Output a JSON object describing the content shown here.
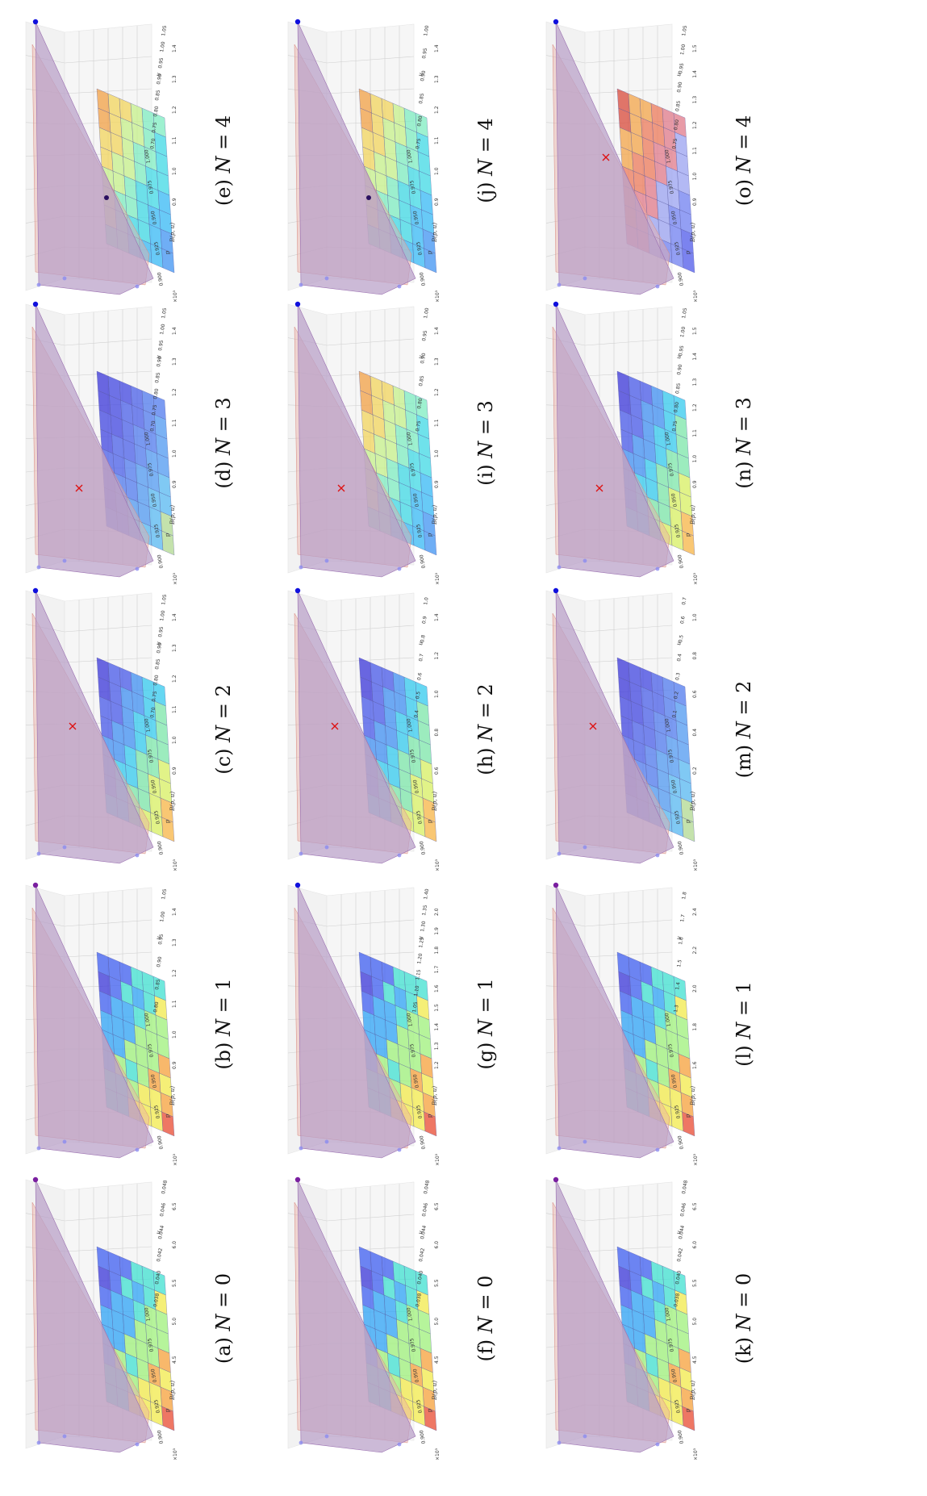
{
  "figure": {
    "rows": [
      {
        "panels": [
          {
            "label": "(a)",
            "n": "0",
            "surface": "rainbow",
            "marker": "purple-dot",
            "z_ticks": [
              "6.5",
              "6.0",
              "5.5",
              "5.0",
              "4.5"
            ],
            "right_ticks": [
              "0.048",
              "0.046",
              "0.044",
              "0.042",
              "0.040",
              "0.038"
            ],
            "bottom_ticks": [
              "0.900",
              "0.925",
              "0.950",
              "0.975",
              "1.000"
            ]
          },
          {
            "label": "(b)",
            "n": "1",
            "surface": "rainbow",
            "marker": "purple-dot",
            "z_ticks": [
              "1.4",
              "1.3",
              "1.2",
              "1.1",
              "1.0",
              "0.9"
            ],
            "right_ticks": [
              "1.05",
              "1.00",
              "0.95",
              "0.90",
              "0.85",
              "0.80"
            ],
            "bottom_ticks": [
              "0.900",
              "0.925",
              "0.950",
              "0.975",
              "1.000"
            ]
          },
          {
            "label": "(c)",
            "n": "2",
            "surface": "wide",
            "marker": "red-x",
            "z_ticks": [
              "1.4",
              "1.3",
              "1.2",
              "1.1",
              "1.0",
              "0.9"
            ],
            "right_ticks": [
              "1.05",
              "1.00",
              "0.95",
              "0.90",
              "0.85",
              "0.80",
              "0.75",
              "0.70"
            ],
            "bottom_ticks": [
              "0.900",
              "0.925",
              "0.950",
              "0.975",
              "1.000"
            ]
          },
          {
            "label": "(d)",
            "n": "3",
            "surface": "blue",
            "marker": "red-x",
            "z_ticks": [
              "1.4",
              "1.3",
              "1.2",
              "1.1",
              "1.0",
              "0.9"
            ],
            "right_ticks": [
              "1.05",
              "1.00",
              "0.95",
              "0.90",
              "0.85",
              "0.80",
              "0.75",
              "0.70"
            ],
            "bottom_ticks": [
              "0.900",
              "0.925",
              "0.950",
              "0.975",
              "1.000"
            ]
          },
          {
            "label": "(e)",
            "n": "4",
            "surface": "cyan",
            "marker": "dark-dot",
            "z_ticks": [
              "1.4",
              "1.3",
              "1.2",
              "1.1",
              "1.0",
              "0.9"
            ],
            "right_ticks": [
              "1.05",
              "1.00",
              "0.95",
              "0.90",
              "0.85",
              "0.80",
              "0.75",
              "0.70"
            ],
            "bottom_ticks": [
              "0.900",
              "0.925",
              "0.950",
              "0.975",
              "1.000"
            ]
          }
        ]
      },
      {
        "panels": [
          {
            "label": "(f)",
            "n": "0",
            "surface": "rainbow",
            "marker": "purple-dot",
            "z_ticks": [
              "6.5",
              "6.0",
              "5.5",
              "5.0",
              "4.5"
            ],
            "right_ticks": [
              "0.048",
              "0.046",
              "0.044",
              "0.042",
              "0.040",
              "0.038"
            ],
            "bottom_ticks": [
              "0.900",
              "0.925",
              "0.950",
              "0.975",
              "1.000"
            ]
          },
          {
            "label": "(g)",
            "n": "1",
            "surface": "rainbow",
            "marker": "blue-dot",
            "z_ticks": [
              "2.0",
              "1.9",
              "1.8",
              "1.7",
              "1.6",
              "1.5",
              "1.4",
              "1.3",
              "1.2"
            ],
            "right_ticks": [
              "1.40",
              "1.35",
              "1.30",
              "1.25",
              "1.20",
              "1.15",
              "1.10",
              "1.05"
            ],
            "bottom_ticks": [
              "0.900",
              "0.925",
              "0.950",
              "0.975",
              "1.000"
            ]
          },
          {
            "label": "(h)",
            "n": "2",
            "surface": "wide",
            "marker": "red-x",
            "z_ticks": [
              "1.4",
              "1.2",
              "1.0",
              "0.8",
              "0.6"
            ],
            "right_ticks": [
              "1.0",
              "0.9",
              "0.8",
              "0.7",
              "0.6",
              "0.5",
              "0.4"
            ],
            "bottom_ticks": [
              "0.900",
              "0.925",
              "0.950",
              "0.975",
              "1.000"
            ]
          },
          {
            "label": "(i)",
            "n": "3",
            "surface": "cyan",
            "marker": "red-x",
            "z_ticks": [
              "1.4",
              "1.3",
              "1.2",
              "1.1",
              "1.0",
              "0.9"
            ],
            "right_ticks": [
              "1.00",
              "0.95",
              "0.90",
              "0.85",
              "0.80",
              "0.75"
            ],
            "bottom_ticks": [
              "0.900",
              "0.925",
              "0.950",
              "0.975",
              "1.000"
            ]
          },
          {
            "label": "(j)",
            "n": "4",
            "surface": "cyan",
            "marker": "dark-dot",
            "z_ticks": [
              "1.4",
              "1.3",
              "1.2",
              "1.1",
              "1.0",
              "0.9"
            ],
            "right_ticks": [
              "1.00",
              "0.95",
              "0.90",
              "0.85",
              "0.80",
              "0.75"
            ],
            "bottom_ticks": [
              "0.900",
              "0.925",
              "0.950",
              "0.975",
              "1.000"
            ]
          }
        ]
      },
      {
        "panels": [
          {
            "label": "(k)",
            "n": "0",
            "surface": "rainbow",
            "marker": "purple-dot",
            "z_ticks": [
              "6.5",
              "6.0",
              "5.5",
              "5.0",
              "4.5"
            ],
            "right_ticks": [
              "0.048",
              "0.046",
              "0.044",
              "0.042",
              "0.040",
              "0.038"
            ],
            "bottom_ticks": [
              "0.900",
              "0.925",
              "0.950",
              "0.975",
              "1.000"
            ]
          },
          {
            "label": "(l)",
            "n": "1",
            "surface": "rainbow",
            "marker": "purple-dot",
            "z_ticks": [
              "2.4",
              "2.2",
              "2.0",
              "1.8",
              "1.6"
            ],
            "right_ticks": [
              "1.8",
              "1.7",
              "1.6",
              "1.5",
              "1.4",
              "1.3"
            ],
            "bottom_ticks": [
              "0.900",
              "0.925",
              "0.950",
              "0.975",
              "1.000"
            ]
          },
          {
            "label": "(m)",
            "n": "2",
            "surface": "blue",
            "marker": "red-x",
            "z_ticks": [
              "1.0",
              "0.8",
              "0.6",
              "0.4",
              "0.2"
            ],
            "right_ticks": [
              "0.7",
              "0.6",
              "0.5",
              "0.4",
              "0.3",
              "0.2",
              "0.1"
            ],
            "bottom_ticks": [
              "0.900",
              "0.925",
              "0.950",
              "0.975",
              "1.000"
            ]
          },
          {
            "label": "(n)",
            "n": "3",
            "surface": "wide",
            "marker": "red-x",
            "z_ticks": [
              "1.5",
              "1.4",
              "1.3",
              "1.2",
              "1.1",
              "1.0",
              "0.9"
            ],
            "right_ticks": [
              "1.05",
              "1.00",
              "0.95",
              "0.90",
              "0.85",
              "0.80",
              "0.75"
            ],
            "bottom_ticks": [
              "0.900",
              "0.925",
              "0.950",
              "0.975",
              "1.000"
            ]
          },
          {
            "label": "(o)",
            "n": "4",
            "surface": "orange",
            "marker": "red-x",
            "z_ticks": [
              "1.5",
              "1.4",
              "1.3",
              "1.2",
              "1.1",
              "1.0",
              "0.9"
            ],
            "right_ticks": [
              "1.05",
              "1.00",
              "0.95",
              "0.90",
              "0.85",
              "0.80",
              "0.75"
            ],
            "bottom_ticks": [
              "0.900",
              "0.925",
              "0.950",
              "0.975",
              "1.000"
            ]
          }
        ]
      }
    ],
    "caption_var": "N",
    "caption_eq": "=",
    "axis_labels": {
      "z": "B(p, u)",
      "right": "u",
      "bottom": "p",
      "exp": "×10³"
    },
    "colors": {
      "plane": "#b9a0c8",
      "plane_edge": "#9a6fb0",
      "red_plane": "#eab0a6",
      "grid": "#d0d0d0",
      "pane": "#f2f2f2",
      "marker_blue": "#1010dd",
      "marker_red": "#dd1111"
    }
  }
}
